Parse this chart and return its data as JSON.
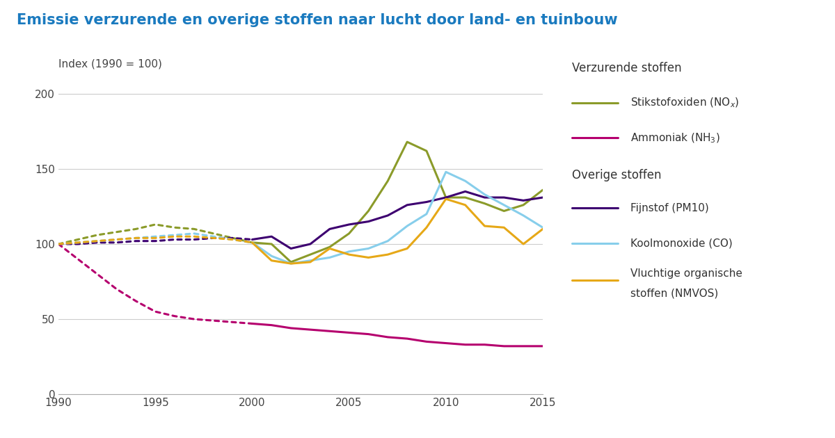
{
  "title": "Emissie verzurende en overige stoffen naar lucht door land- en tuinbouw",
  "ylabel": "Index (1990 = 100)",
  "background_color": "#ffffff",
  "title_color": "#1a7abf",
  "years": [
    1990,
    1991,
    1992,
    1993,
    1994,
    1995,
    1996,
    1997,
    1998,
    1999,
    2000,
    2001,
    2002,
    2003,
    2004,
    2005,
    2006,
    2007,
    2008,
    2009,
    2010,
    2011,
    2012,
    2013,
    2014,
    2015
  ],
  "NOx_dotted": [
    100,
    103,
    106,
    108,
    110,
    113,
    111,
    110,
    107,
    104,
    101,
    null,
    null,
    null,
    null,
    null,
    null,
    null,
    null,
    null,
    null,
    null,
    null,
    null,
    null,
    null
  ],
  "NOx_solid": [
    null,
    null,
    null,
    null,
    null,
    null,
    null,
    null,
    null,
    null,
    101,
    100,
    88,
    93,
    98,
    107,
    122,
    142,
    168,
    162,
    131,
    131,
    127,
    122,
    126,
    136
  ],
  "NH3_dotted": [
    100,
    90,
    80,
    70,
    62,
    55,
    52,
    50,
    49,
    48,
    47,
    null,
    null,
    null,
    null,
    null,
    null,
    null,
    null,
    null,
    null,
    null,
    null,
    null,
    null,
    null
  ],
  "NH3_solid": [
    null,
    null,
    null,
    null,
    null,
    null,
    null,
    null,
    null,
    null,
    47,
    46,
    44,
    43,
    42,
    41,
    40,
    38,
    37,
    35,
    34,
    33,
    33,
    32,
    32,
    32
  ],
  "PM10_dotted": [
    100,
    100,
    101,
    101,
    102,
    102,
    103,
    103,
    104,
    104,
    103,
    null,
    null,
    null,
    null,
    null,
    null,
    null,
    null,
    null,
    null,
    null,
    null,
    null,
    null,
    null
  ],
  "PM10_solid": [
    null,
    null,
    null,
    null,
    null,
    null,
    null,
    null,
    null,
    null,
    103,
    105,
    97,
    100,
    110,
    113,
    115,
    119,
    126,
    128,
    131,
    135,
    131,
    131,
    129,
    131
  ],
  "CO_dotted": [
    100,
    101,
    102,
    103,
    104,
    105,
    106,
    107,
    105,
    103,
    101,
    null,
    null,
    null,
    null,
    null,
    null,
    null,
    null,
    null,
    null,
    null,
    null,
    null,
    null,
    null
  ],
  "CO_solid": [
    null,
    null,
    null,
    null,
    null,
    null,
    null,
    null,
    null,
    null,
    101,
    92,
    87,
    89,
    91,
    95,
    97,
    102,
    112,
    120,
    148,
    142,
    133,
    126,
    119,
    111
  ],
  "NMVOS_dotted": [
    100,
    101,
    102,
    103,
    104,
    104,
    105,
    105,
    104,
    103,
    101,
    null,
    null,
    null,
    null,
    null,
    null,
    null,
    null,
    null,
    null,
    null,
    null,
    null,
    null,
    null
  ],
  "NMVOS_solid": [
    null,
    null,
    null,
    null,
    null,
    null,
    null,
    null,
    null,
    null,
    101,
    89,
    87,
    88,
    97,
    93,
    91,
    93,
    97,
    111,
    130,
    126,
    112,
    111,
    100,
    110
  ],
  "colors": {
    "NOx": "#8B9B2A",
    "NH3": "#b5006e",
    "PM10": "#3d0070",
    "CO": "#87ceeb",
    "NMVOS": "#e6a817"
  },
  "xlim": [
    1990,
    2015
  ],
  "ylim": [
    0,
    210
  ],
  "yticks": [
    0,
    50,
    100,
    150,
    200
  ],
  "xticks": [
    1990,
    1995,
    2000,
    2005,
    2010,
    2015
  ]
}
